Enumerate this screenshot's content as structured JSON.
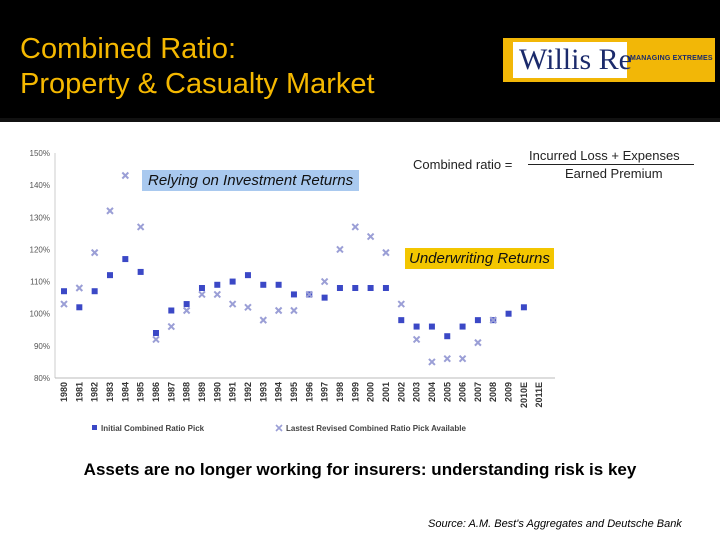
{
  "header": {
    "title_line1": "Combined Ratio:",
    "title_line2": "Property & Casualty Market"
  },
  "logo": {
    "wordmark": "Willis Re",
    "tagline": "MANAGING EXTREMES"
  },
  "annotations": {
    "investment": "Relying on Investment Returns",
    "underwriting": "Underwriting Returns",
    "formula_lhs": "Combined ratio =",
    "formula_numerator": "Incurred Loss + Expenses",
    "formula_denominator": "Earned Premium"
  },
  "chart_data": {
    "type": "scatter",
    "categories": [
      "1980",
      "1981",
      "1982",
      "1983",
      "1984",
      "1985",
      "1986",
      "1987",
      "1988",
      "1989",
      "1990",
      "1991",
      "1992",
      "1993",
      "1994",
      "1995",
      "1996",
      "1997",
      "1998",
      "1999",
      "2000",
      "2001",
      "2002",
      "2003",
      "2004",
      "2005",
      "2006",
      "2007",
      "2008",
      "2009",
      "2010E",
      "2011E"
    ],
    "ylim": [
      80,
      150
    ],
    "yticks": [
      "80%",
      "90%",
      "100%",
      "110%",
      "120%",
      "130%",
      "140%",
      "150%"
    ],
    "series": [
      {
        "name": "Initial Combined Ratio Pick",
        "marker": "square",
        "color": "#3b48c6",
        "values": [
          107,
          102,
          107,
          112,
          117,
          113,
          94,
          101,
          103,
          108,
          109,
          110,
          112,
          109,
          109,
          106,
          106,
          105,
          108,
          108,
          108,
          108,
          98,
          96,
          96,
          93,
          96,
          98,
          98,
          100,
          102,
          null
        ]
      },
      {
        "name": "Lastest Revised Combined Ratio Pick Available",
        "marker": "x",
        "color": "#9b9fd6",
        "values": [
          103,
          108,
          119,
          132,
          143,
          127,
          92,
          96,
          101,
          106,
          106,
          103,
          102,
          98,
          101,
          101,
          106,
          110,
          120,
          127,
          124,
          119,
          103,
          92,
          85,
          86,
          86,
          91,
          98,
          null,
          null,
          null
        ]
      }
    ],
    "legend_position": "bottom",
    "grid": false
  },
  "caption": "Assets are no longer working for insurers: understanding risk is key",
  "source": "Source: A.M. Best's Aggregates and Deutsche Bank"
}
